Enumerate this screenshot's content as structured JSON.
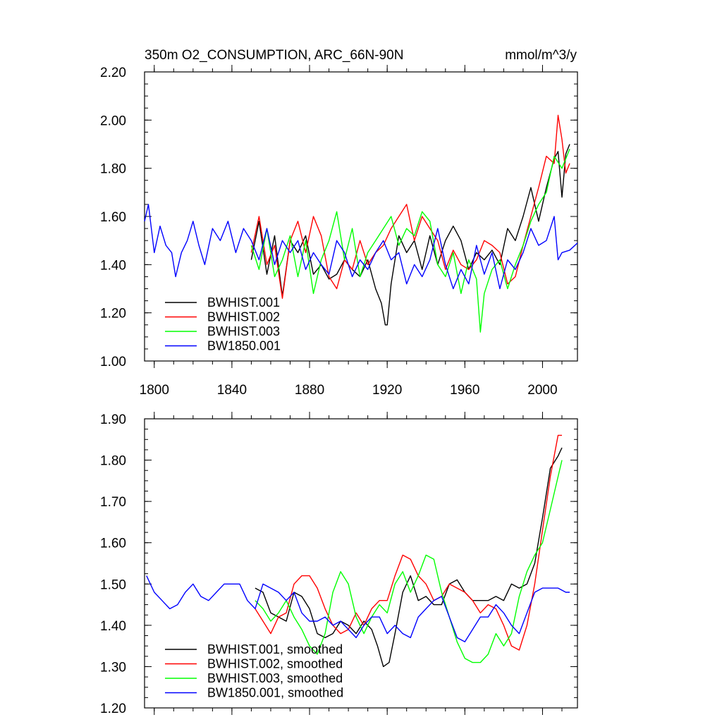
{
  "chart_data": [
    {
      "type": "line",
      "title": "350m O2_CONSUMPTION, ARC_66N-90N",
      "units": "mmol/m^3/y",
      "xlabel": "",
      "ylabel": "",
      "xlim": [
        1795,
        2018
      ],
      "ylim": [
        1.0,
        2.2
      ],
      "xticks": [
        1800,
        1840,
        1880,
        1920,
        1960,
        2000
      ],
      "yticks": [
        1.0,
        1.2,
        1.4,
        1.6,
        1.8,
        2.0,
        2.2
      ],
      "ytick_labels": [
        "1.00",
        "1.20",
        "1.40",
        "1.60",
        "1.80",
        "2.00",
        "2.20"
      ],
      "xtick_labels": [
        "1800",
        "1840",
        "1880",
        "1920",
        "1960",
        "2000"
      ],
      "legend_position": "bottom-left",
      "series": [
        {
          "name": "BWHIST.001",
          "color": "#000000",
          "x": [
            1850,
            1854,
            1858,
            1862,
            1866,
            1870,
            1874,
            1878,
            1882,
            1886,
            1890,
            1894,
            1898,
            1902,
            1906,
            1910,
            1914,
            1917,
            1919,
            1920,
            1922,
            1926,
            1930,
            1934,
            1938,
            1942,
            1946,
            1950,
            1954,
            1958,
            1962,
            1966,
            1970,
            1974,
            1978,
            1982,
            1986,
            1990,
            1994,
            1998,
            2002,
            2006,
            2008,
            2010,
            2012,
            2014
          ],
          "y": [
            1.42,
            1.58,
            1.36,
            1.52,
            1.27,
            1.5,
            1.45,
            1.52,
            1.36,
            1.4,
            1.34,
            1.36,
            1.42,
            1.38,
            1.35,
            1.42,
            1.3,
            1.24,
            1.15,
            1.15,
            1.32,
            1.52,
            1.45,
            1.5,
            1.38,
            1.52,
            1.4,
            1.5,
            1.56,
            1.5,
            1.38,
            1.45,
            1.42,
            1.46,
            1.4,
            1.55,
            1.5,
            1.6,
            1.72,
            1.58,
            1.72,
            1.84,
            1.87,
            1.68,
            1.86,
            1.9
          ]
        },
        {
          "name": "BWHIST.002",
          "color": "#ff0000",
          "x": [
            1850,
            1854,
            1858,
            1862,
            1866,
            1870,
            1874,
            1878,
            1882,
            1886,
            1890,
            1894,
            1898,
            1902,
            1906,
            1910,
            1914,
            1918,
            1922,
            1926,
            1930,
            1934,
            1938,
            1942,
            1946,
            1950,
            1954,
            1958,
            1962,
            1966,
            1970,
            1974,
            1978,
            1982,
            1986,
            1990,
            1994,
            1998,
            2002,
            2006,
            2008,
            2010,
            2012,
            2014
          ],
          "y": [
            1.45,
            1.6,
            1.4,
            1.48,
            1.26,
            1.5,
            1.58,
            1.45,
            1.6,
            1.52,
            1.35,
            1.3,
            1.42,
            1.38,
            1.5,
            1.4,
            1.45,
            1.48,
            1.55,
            1.6,
            1.65,
            1.5,
            1.6,
            1.55,
            1.5,
            1.38,
            1.46,
            1.4,
            1.38,
            1.42,
            1.5,
            1.48,
            1.45,
            1.32,
            1.35,
            1.48,
            1.6,
            1.72,
            1.85,
            1.82,
            2.02,
            1.92,
            1.78,
            1.82
          ]
        },
        {
          "name": "BWHIST.003",
          "color": "#00ff00",
          "x": [
            1850,
            1854,
            1858,
            1862,
            1866,
            1870,
            1874,
            1878,
            1882,
            1886,
            1890,
            1894,
            1898,
            1902,
            1906,
            1910,
            1914,
            1918,
            1922,
            1926,
            1930,
            1934,
            1938,
            1942,
            1946,
            1950,
            1954,
            1958,
            1962,
            1966,
            1968,
            1970,
            1974,
            1978,
            1982,
            1986,
            1990,
            1994,
            1998,
            2002,
            2006,
            2010,
            2014
          ],
          "y": [
            1.48,
            1.38,
            1.55,
            1.35,
            1.42,
            1.52,
            1.35,
            1.5,
            1.28,
            1.42,
            1.5,
            1.62,
            1.42,
            1.55,
            1.35,
            1.45,
            1.5,
            1.55,
            1.6,
            1.48,
            1.55,
            1.52,
            1.62,
            1.58,
            1.4,
            1.35,
            1.45,
            1.28,
            1.42,
            1.34,
            1.12,
            1.28,
            1.38,
            1.42,
            1.3,
            1.4,
            1.48,
            1.58,
            1.65,
            1.7,
            1.85,
            1.8,
            1.88
          ]
        },
        {
          "name": "BW1850.001",
          "color": "#0000ff",
          "x": [
            1795,
            1797,
            1800,
            1803,
            1806,
            1809,
            1811,
            1814,
            1817,
            1820,
            1823,
            1826,
            1830,
            1834,
            1838,
            1842,
            1846,
            1850,
            1854,
            1858,
            1862,
            1866,
            1870,
            1874,
            1878,
            1882,
            1886,
            1890,
            1894,
            1898,
            1902,
            1906,
            1910,
            1914,
            1918,
            1922,
            1926,
            1930,
            1934,
            1938,
            1942,
            1946,
            1950,
            1954,
            1958,
            1962,
            1966,
            1970,
            1974,
            1978,
            1982,
            1986,
            1990,
            1994,
            1998,
            2002,
            2006,
            2008,
            2010,
            2014,
            2018
          ],
          "y": [
            1.58,
            1.65,
            1.45,
            1.56,
            1.48,
            1.45,
            1.35,
            1.45,
            1.5,
            1.58,
            1.48,
            1.4,
            1.55,
            1.5,
            1.58,
            1.45,
            1.55,
            1.5,
            1.42,
            1.55,
            1.4,
            1.5,
            1.45,
            1.5,
            1.38,
            1.45,
            1.4,
            1.36,
            1.5,
            1.45,
            1.35,
            1.42,
            1.38,
            1.45,
            1.5,
            1.42,
            1.45,
            1.32,
            1.4,
            1.35,
            1.42,
            1.55,
            1.4,
            1.3,
            1.38,
            1.32,
            1.48,
            1.36,
            1.45,
            1.3,
            1.42,
            1.38,
            1.45,
            1.55,
            1.48,
            1.5,
            1.6,
            1.42,
            1.45,
            1.46,
            1.49
          ]
        }
      ]
    },
    {
      "type": "line",
      "title": "",
      "xlabel": "",
      "ylabel": "",
      "xlim": [
        1795,
        2018
      ],
      "ylim": [
        1.2,
        1.9
      ],
      "xticks": [
        1800,
        1840,
        1880,
        1920,
        1960,
        2000
      ],
      "yticks": [
        1.2,
        1.3,
        1.4,
        1.5,
        1.6,
        1.7,
        1.8,
        1.9
      ],
      "ytick_labels": [
        "1.20",
        "1.30",
        "1.40",
        "1.50",
        "1.60",
        "1.70",
        "1.80",
        "1.90"
      ],
      "legend_position": "bottom-left",
      "series": [
        {
          "name": "BWHIST.001, smoothed",
          "color": "#000000",
          "x": [
            1852,
            1856,
            1860,
            1864,
            1868,
            1872,
            1876,
            1880,
            1884,
            1888,
            1892,
            1896,
            1900,
            1904,
            1908,
            1912,
            1915,
            1918,
            1921,
            1924,
            1928,
            1932,
            1936,
            1940,
            1944,
            1948,
            1952,
            1956,
            1960,
            1964,
            1968,
            1972,
            1976,
            1980,
            1984,
            1988,
            1992,
            1996,
            2000,
            2004,
            2008,
            2010
          ],
          "y": [
            1.49,
            1.48,
            1.43,
            1.42,
            1.41,
            1.48,
            1.47,
            1.44,
            1.38,
            1.37,
            1.38,
            1.41,
            1.4,
            1.38,
            1.41,
            1.39,
            1.35,
            1.3,
            1.31,
            1.38,
            1.48,
            1.52,
            1.46,
            1.47,
            1.45,
            1.45,
            1.5,
            1.51,
            1.48,
            1.46,
            1.46,
            1.46,
            1.47,
            1.46,
            1.5,
            1.49,
            1.5,
            1.55,
            1.66,
            1.78,
            1.81,
            1.83
          ]
        },
        {
          "name": "BWHIST.002, smoothed",
          "color": "#ff0000",
          "x": [
            1852,
            1856,
            1860,
            1864,
            1868,
            1872,
            1876,
            1880,
            1884,
            1888,
            1892,
            1896,
            1900,
            1904,
            1908,
            1912,
            1916,
            1920,
            1924,
            1928,
            1932,
            1936,
            1940,
            1944,
            1948,
            1952,
            1956,
            1960,
            1964,
            1968,
            1972,
            1976,
            1980,
            1984,
            1988,
            1992,
            1996,
            2000,
            2004,
            2008,
            2010
          ],
          "y": [
            1.44,
            1.41,
            1.38,
            1.42,
            1.43,
            1.5,
            1.52,
            1.52,
            1.49,
            1.44,
            1.4,
            1.38,
            1.39,
            1.43,
            1.4,
            1.44,
            1.46,
            1.46,
            1.52,
            1.57,
            1.56,
            1.52,
            1.5,
            1.46,
            1.47,
            1.5,
            1.49,
            1.48,
            1.46,
            1.43,
            1.45,
            1.44,
            1.4,
            1.35,
            1.34,
            1.4,
            1.5,
            1.63,
            1.76,
            1.86,
            1.86
          ]
        },
        {
          "name": "BWHIST.003, smoothed",
          "color": "#00ff00",
          "x": [
            1852,
            1856,
            1860,
            1864,
            1868,
            1872,
            1876,
            1880,
            1884,
            1888,
            1892,
            1896,
            1900,
            1904,
            1908,
            1912,
            1916,
            1920,
            1924,
            1928,
            1932,
            1936,
            1940,
            1944,
            1948,
            1952,
            1956,
            1960,
            1964,
            1968,
            1972,
            1976,
            1980,
            1984,
            1988,
            1992,
            1996,
            2000,
            2004,
            2008,
            2010
          ],
          "y": [
            1.46,
            1.44,
            1.41,
            1.43,
            1.46,
            1.42,
            1.39,
            1.35,
            1.33,
            1.38,
            1.48,
            1.53,
            1.5,
            1.42,
            1.38,
            1.42,
            1.45,
            1.43,
            1.5,
            1.53,
            1.48,
            1.52,
            1.57,
            1.56,
            1.48,
            1.42,
            1.36,
            1.32,
            1.31,
            1.31,
            1.33,
            1.38,
            1.35,
            1.38,
            1.47,
            1.53,
            1.57,
            1.6,
            1.68,
            1.76,
            1.8
          ]
        },
        {
          "name": "BW1850.001, smoothed",
          "color": "#0000ff",
          "x": [
            1796,
            1800,
            1804,
            1808,
            1812,
            1816,
            1820,
            1824,
            1828,
            1832,
            1836,
            1840,
            1844,
            1848,
            1852,
            1856,
            1860,
            1864,
            1868,
            1872,
            1876,
            1880,
            1884,
            1888,
            1892,
            1896,
            1900,
            1904,
            1908,
            1912,
            1916,
            1920,
            1924,
            1928,
            1932,
            1936,
            1940,
            1944,
            1948,
            1952,
            1956,
            1960,
            1964,
            1968,
            1972,
            1976,
            1980,
            1984,
            1988,
            1992,
            1996,
            2000,
            2004,
            2008,
            2012,
            2014
          ],
          "y": [
            1.52,
            1.48,
            1.46,
            1.44,
            1.45,
            1.48,
            1.5,
            1.47,
            1.46,
            1.48,
            1.5,
            1.5,
            1.5,
            1.46,
            1.44,
            1.5,
            1.49,
            1.48,
            1.46,
            1.48,
            1.43,
            1.41,
            1.41,
            1.42,
            1.4,
            1.41,
            1.39,
            1.37,
            1.4,
            1.42,
            1.42,
            1.38,
            1.4,
            1.38,
            1.37,
            1.42,
            1.44,
            1.46,
            1.47,
            1.42,
            1.37,
            1.36,
            1.39,
            1.42,
            1.42,
            1.45,
            1.43,
            1.4,
            1.38,
            1.43,
            1.48,
            1.49,
            1.49,
            1.49,
            1.48,
            1.48
          ]
        }
      ]
    }
  ]
}
